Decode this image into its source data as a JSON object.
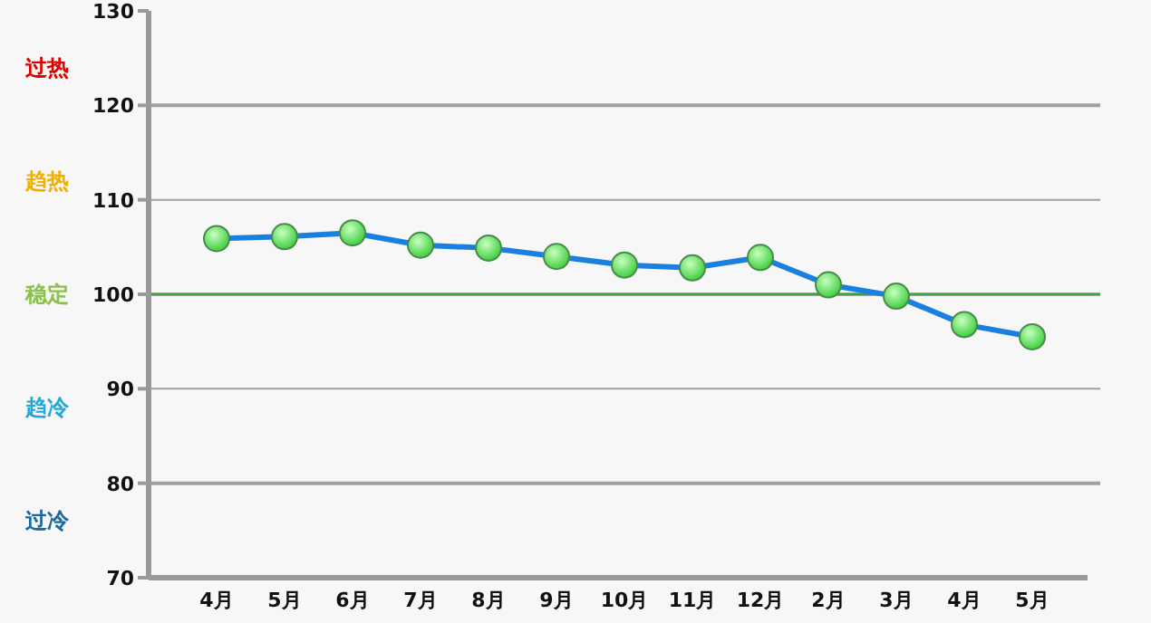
{
  "chart_data": {
    "type": "line",
    "categories": [
      "4月",
      "5月",
      "6月",
      "7月",
      "8月",
      "9月",
      "10月",
      "11月",
      "12月",
      "2月",
      "3月",
      "4月",
      "5月"
    ],
    "series": [
      {
        "color": "#1a80e0",
        "values": [
          105.9,
          106.1,
          106.5,
          105.2,
          104.9,
          104.0,
          103.1,
          102.8,
          103.9,
          101.0,
          99.8,
          96.8,
          95.5
        ]
      }
    ],
    "ylim": [
      70,
      130
    ],
    "yticks": [
      70,
      80,
      90,
      100,
      110,
      120,
      130
    ],
    "grid": "y",
    "marker": "circle",
    "line_style": "solid",
    "ref_lines": [
      {
        "axis": "y",
        "value": 100,
        "color": "#33aa33"
      }
    ],
    "annotations": [
      "过热",
      "趋热",
      "稳定",
      "趋冷",
      "过冷"
    ]
  }
}
